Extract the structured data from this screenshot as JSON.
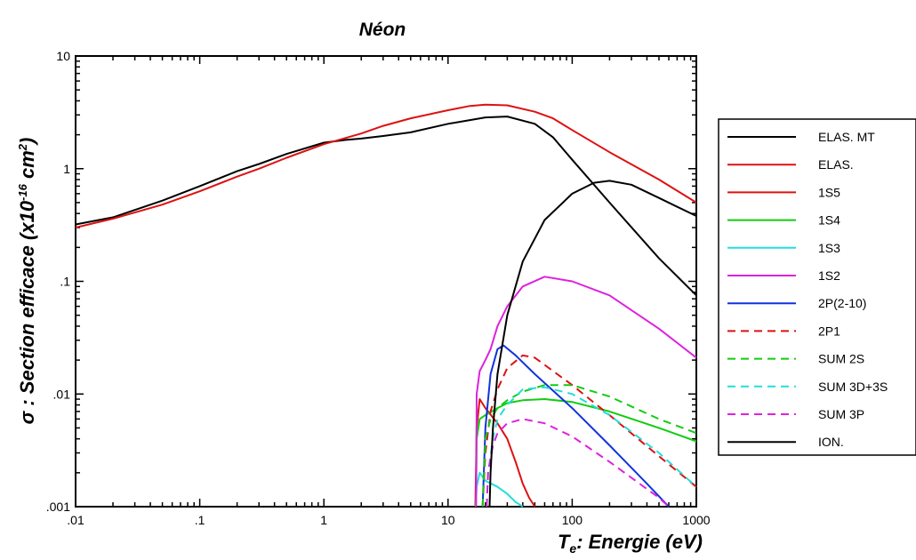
{
  "chart_data": {
    "type": "line",
    "title": "Néon",
    "xlabel": {
      "symbol": "T",
      "sub": "e",
      "text": ": Energie (eV)"
    },
    "ylabel": {
      "text": "σ : Section efficace (x10",
      "sup1": "-16",
      "mid": " cm",
      "sup2": "2",
      "end": ")"
    },
    "x_scale": "log",
    "y_scale": "log",
    "xlim": [
      0.01,
      1000
    ],
    "ylim": [
      0.001,
      10
    ],
    "x_ticks": [
      {
        "value": 0.01,
        "label": ".01"
      },
      {
        "value": 0.1,
        "label": ".1"
      },
      {
        "value": 1,
        "label": "1"
      },
      {
        "value": 10,
        "label": "10"
      },
      {
        "value": 100,
        "label": "100"
      },
      {
        "value": 1000,
        "label": "1000"
      }
    ],
    "y_ticks": [
      {
        "value": 0.001,
        "label": ".001"
      },
      {
        "value": 0.01,
        "label": ".01"
      },
      {
        "value": 0.1,
        "label": ".1"
      },
      {
        "value": 1,
        "label": "1"
      },
      {
        "value": 10,
        "label": "10"
      }
    ],
    "grid": false,
    "legend_position": "right",
    "series": [
      {
        "name": "ELAS. MT",
        "color": "#000000",
        "dash": "solid",
        "points": [
          [
            0.01,
            0.32
          ],
          [
            0.02,
            0.37
          ],
          [
            0.05,
            0.52
          ],
          [
            0.1,
            0.7
          ],
          [
            0.2,
            0.95
          ],
          [
            0.3,
            1.1
          ],
          [
            0.5,
            1.35
          ],
          [
            1,
            1.7
          ],
          [
            1.5,
            1.8
          ],
          [
            2,
            1.85
          ],
          [
            3,
            1.95
          ],
          [
            5,
            2.1
          ],
          [
            10,
            2.5
          ],
          [
            15,
            2.7
          ],
          [
            20,
            2.85
          ],
          [
            30,
            2.9
          ],
          [
            50,
            2.5
          ],
          [
            70,
            1.9
          ],
          [
            100,
            1.2
          ],
          [
            200,
            0.5
          ],
          [
            500,
            0.16
          ],
          [
            1000,
            0.075
          ]
        ]
      },
      {
        "name": "ELAS.",
        "color": "#dd1111",
        "dash": "solid",
        "points": [
          [
            0.01,
            0.3
          ],
          [
            0.02,
            0.36
          ],
          [
            0.05,
            0.48
          ],
          [
            0.1,
            0.63
          ],
          [
            0.2,
            0.85
          ],
          [
            0.3,
            1.0
          ],
          [
            0.5,
            1.25
          ],
          [
            1,
            1.65
          ],
          [
            2,
            2.05
          ],
          [
            3,
            2.4
          ],
          [
            5,
            2.8
          ],
          [
            10,
            3.3
          ],
          [
            15,
            3.6
          ],
          [
            20,
            3.7
          ],
          [
            30,
            3.65
          ],
          [
            50,
            3.2
          ],
          [
            70,
            2.8
          ],
          [
            100,
            2.2
          ],
          [
            200,
            1.4
          ],
          [
            500,
            0.8
          ],
          [
            1000,
            0.5
          ]
        ]
      },
      {
        "name": "1S5",
        "color": "#dd1111",
        "dash": "solid",
        "points": [
          [
            16.6,
            0.001
          ],
          [
            17,
            0.005
          ],
          [
            18,
            0.009
          ],
          [
            20,
            0.0075
          ],
          [
            25,
            0.0055
          ],
          [
            30,
            0.004
          ],
          [
            35,
            0.0025
          ],
          [
            40,
            0.0016
          ],
          [
            45,
            0.0012
          ],
          [
            50,
            0.001
          ]
        ]
      },
      {
        "name": "1S4",
        "color": "#11cc11",
        "dash": "solid",
        "points": [
          [
            16.8,
            0.001
          ],
          [
            17,
            0.004
          ],
          [
            18,
            0.006
          ],
          [
            20,
            0.0065
          ],
          [
            25,
            0.0075
          ],
          [
            30,
            0.0083
          ],
          [
            40,
            0.0088
          ],
          [
            60,
            0.009
          ],
          [
            100,
            0.0085
          ],
          [
            200,
            0.007
          ],
          [
            500,
            0.005
          ],
          [
            1000,
            0.0038
          ]
        ]
      },
      {
        "name": "1S3",
        "color": "#22dddd",
        "dash": "solid",
        "points": [
          [
            16.7,
            0.001
          ],
          [
            17,
            0.0015
          ],
          [
            18,
            0.002
          ],
          [
            20,
            0.0017
          ],
          [
            25,
            0.0015
          ],
          [
            30,
            0.0013
          ],
          [
            35,
            0.0011
          ],
          [
            40,
            0.001
          ]
        ]
      },
      {
        "name": "1S2",
        "color": "#dd22dd",
        "dash": "solid",
        "points": [
          [
            16.8,
            0.001
          ],
          [
            17,
            0.01
          ],
          [
            18,
            0.016
          ],
          [
            20,
            0.02
          ],
          [
            22,
            0.025
          ],
          [
            25,
            0.04
          ],
          [
            30,
            0.06
          ],
          [
            40,
            0.09
          ],
          [
            60,
            0.11
          ],
          [
            100,
            0.1
          ],
          [
            200,
            0.075
          ],
          [
            500,
            0.038
          ],
          [
            1000,
            0.021
          ]
        ]
      },
      {
        "name": "2P(2-10)",
        "color": "#1133dd",
        "dash": "solid",
        "points": [
          [
            19,
            0.001
          ],
          [
            20,
            0.005
          ],
          [
            22,
            0.015
          ],
          [
            25,
            0.025
          ],
          [
            28,
            0.027
          ],
          [
            35,
            0.022
          ],
          [
            50,
            0.015
          ],
          [
            100,
            0.0075
          ],
          [
            200,
            0.0035
          ],
          [
            400,
            0.0016
          ],
          [
            600,
            0.001
          ]
        ]
      },
      {
        "name": "2P1",
        "color": "#dd1111",
        "dash": "dashed",
        "points": [
          [
            19,
            0.001
          ],
          [
            20,
            0.003
          ],
          [
            22,
            0.007
          ],
          [
            25,
            0.011
          ],
          [
            30,
            0.017
          ],
          [
            40,
            0.022
          ],
          [
            50,
            0.021
          ],
          [
            70,
            0.016
          ],
          [
            100,
            0.012
          ],
          [
            200,
            0.0065
          ],
          [
            500,
            0.0028
          ],
          [
            1000,
            0.0015
          ]
        ]
      },
      {
        "name": "SUM 2S",
        "color": "#11cc11",
        "dash": "dashed",
        "points": [
          [
            19,
            0.001
          ],
          [
            20,
            0.004
          ],
          [
            22,
            0.006
          ],
          [
            25,
            0.0075
          ],
          [
            30,
            0.0088
          ],
          [
            40,
            0.0105
          ],
          [
            60,
            0.012
          ],
          [
            100,
            0.012
          ],
          [
            200,
            0.0095
          ],
          [
            500,
            0.006
          ],
          [
            1000,
            0.0045
          ]
        ]
      },
      {
        "name": "SUM 3D+3S",
        "color": "#22dddd",
        "dash": "dashed",
        "points": [
          [
            20.5,
            0.001
          ],
          [
            21,
            0.002
          ],
          [
            23,
            0.004
          ],
          [
            25,
            0.006
          ],
          [
            30,
            0.008
          ],
          [
            40,
            0.011
          ],
          [
            60,
            0.0115
          ],
          [
            100,
            0.01
          ],
          [
            200,
            0.0065
          ],
          [
            500,
            0.003
          ],
          [
            1000,
            0.0015
          ]
        ]
      },
      {
        "name": "SUM 3P",
        "color": "#dd22dd",
        "dash": "dashed",
        "points": [
          [
            20.5,
            0.001
          ],
          [
            21,
            0.002
          ],
          [
            23,
            0.0035
          ],
          [
            25,
            0.0045
          ],
          [
            30,
            0.0055
          ],
          [
            40,
            0.006
          ],
          [
            60,
            0.0055
          ],
          [
            100,
            0.0042
          ],
          [
            200,
            0.0025
          ],
          [
            500,
            0.0012
          ],
          [
            600,
            0.001
          ]
        ]
      },
      {
        "name": "ION.",
        "color": "#000000",
        "dash": "solid",
        "points": [
          [
            21.6,
            0.001
          ],
          [
            22,
            0.002
          ],
          [
            23,
            0.005
          ],
          [
            25,
            0.015
          ],
          [
            30,
            0.05
          ],
          [
            40,
            0.15
          ],
          [
            60,
            0.35
          ],
          [
            100,
            0.6
          ],
          [
            150,
            0.75
          ],
          [
            200,
            0.78
          ],
          [
            300,
            0.72
          ],
          [
            500,
            0.55
          ],
          [
            1000,
            0.38
          ]
        ]
      }
    ]
  }
}
